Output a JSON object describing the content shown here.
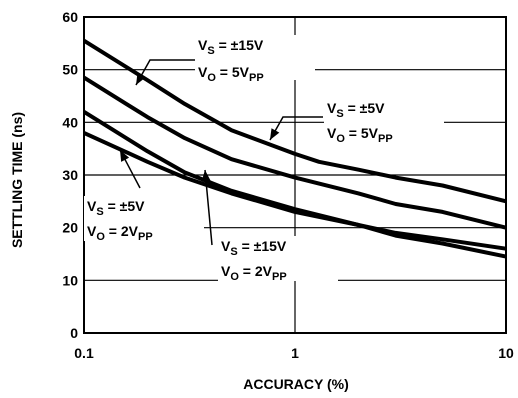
{
  "chart_data": {
    "type": "line",
    "xlabel": "ACCURACY (%)",
    "ylabel": "SETTLING TIME (ns)",
    "x_scale": "log",
    "xlim": [
      0.1,
      10
    ],
    "ylim": [
      0,
      60
    ],
    "grid": true,
    "x_ticks": [
      "0.1",
      "1",
      "10"
    ],
    "y_ticks": [
      "0",
      "10",
      "20",
      "30",
      "40",
      "50",
      "60"
    ],
    "series": [
      {
        "name": "VS = ±15V, VO = 5VPP",
        "x": [
          0.1,
          0.2,
          0.3,
          0.5,
          1,
          1.3,
          2,
          3,
          5,
          10
        ],
        "y": [
          55.5,
          48,
          43.5,
          38.5,
          34,
          32.5,
          31,
          29.5,
          28,
          25
        ]
      },
      {
        "name": "VS = ±5V, VO = 5VPP",
        "x": [
          0.1,
          0.2,
          0.3,
          0.5,
          1,
          2,
          3,
          5,
          10
        ],
        "y": [
          48.5,
          41,
          37,
          33,
          29.5,
          26.5,
          24.5,
          23,
          20
        ]
      },
      {
        "name": "VS = ±5V, VO = 2VPP",
        "x": [
          0.1,
          0.2,
          0.3,
          0.5,
          1,
          2,
          3,
          5,
          10
        ],
        "y": [
          42,
          34.5,
          30.5,
          27,
          23.5,
          20.5,
          19,
          17.8,
          16
        ]
      },
      {
        "name": "VS = ±15V, VO = 2VPP",
        "x": [
          0.1,
          0.2,
          0.3,
          0.5,
          1,
          2,
          3,
          5,
          10
        ],
        "y": [
          38,
          32.5,
          29.5,
          26.5,
          23,
          20.5,
          18.5,
          17,
          14.5
        ]
      }
    ],
    "annotations": [
      {
        "vs_main": "V",
        "vs_sub": "S",
        "vs_rest": " = ±15V",
        "vo_main": "V",
        "vo_sub": "O",
        "vo_rest": " = 5V",
        "vo_unit": "PP"
      },
      {
        "vs_main": "V",
        "vs_sub": "S",
        "vs_rest": " = ±5V",
        "vo_main": "V",
        "vo_sub": "O",
        "vo_rest": " = 5V",
        "vo_unit": "PP"
      },
      {
        "vs_main": "V",
        "vs_sub": "S",
        "vs_rest": " = ±5V",
        "vo_main": "V",
        "vo_sub": "O",
        "vo_rest": " = 2V",
        "vo_unit": "PP"
      },
      {
        "vs_main": "V",
        "vs_sub": "S",
        "vs_rest": " = ±15V",
        "vo_main": "V",
        "vo_sub": "O",
        "vo_rest": " = 2V",
        "vo_unit": "PP"
      }
    ]
  }
}
